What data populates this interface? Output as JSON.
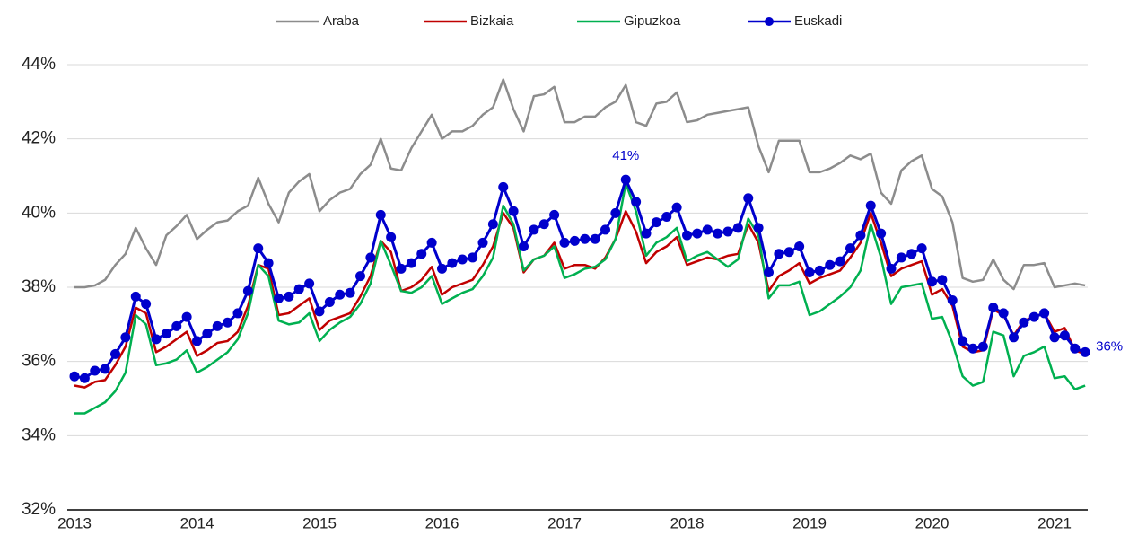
{
  "chart_data": {
    "type": "line",
    "categories": [
      "2013",
      null,
      null,
      null,
      null,
      null,
      null,
      null,
      null,
      null,
      null,
      null,
      "2014",
      null,
      null,
      null,
      null,
      null,
      null,
      null,
      null,
      null,
      null,
      null,
      "2015",
      null,
      null,
      null,
      null,
      null,
      null,
      null,
      null,
      null,
      null,
      null,
      "2016",
      null,
      null,
      null,
      null,
      null,
      null,
      null,
      null,
      null,
      null,
      null,
      "2017",
      null,
      null,
      null,
      null,
      null,
      null,
      null,
      null,
      null,
      null,
      null,
      "2018",
      null,
      null,
      null,
      null,
      null,
      null,
      null,
      null,
      null,
      null,
      null,
      "2019",
      null,
      null,
      null,
      null,
      null,
      null,
      null,
      null,
      null,
      null,
      null,
      "2020",
      null,
      null,
      null,
      null,
      null,
      null,
      null,
      null,
      null,
      null,
      null,
      "2021",
      null,
      null,
      null
    ],
    "ylim": [
      32,
      44
    ],
    "yticks": [
      {
        "value": 32,
        "label": "32%"
      },
      {
        "value": 34,
        "label": "34%"
      },
      {
        "value": 36,
        "label": "36%"
      },
      {
        "value": 38,
        "label": "38%"
      },
      {
        "value": 40,
        "label": "40%"
      },
      {
        "value": 42,
        "label": "42%"
      },
      {
        "value": 44,
        "label": "44%"
      }
    ],
    "grid": true,
    "legend": "top",
    "series": [
      {
        "name": "Araba",
        "color": "#8c8c8c",
        "values": [
          38.0,
          38.0,
          38.05,
          38.2,
          38.6,
          38.9,
          39.6,
          39.05,
          38.6,
          39.4,
          39.65,
          39.95,
          39.3,
          39.55,
          39.75,
          39.8,
          40.05,
          40.2,
          40.95,
          40.25,
          39.75,
          40.55,
          40.85,
          41.05,
          40.05,
          40.35,
          40.55,
          40.65,
          41.05,
          41.3,
          42.0,
          41.2,
          41.15,
          41.75,
          42.2,
          42.65,
          42.0,
          42.2,
          42.2,
          42.35,
          42.65,
          42.85,
          43.6,
          42.8,
          42.2,
          43.15,
          43.2,
          43.4,
          42.45,
          42.45,
          42.6,
          42.6,
          42.85,
          43.0,
          43.45,
          42.45,
          42.35,
          42.95,
          43.0,
          43.25,
          42.45,
          42.5,
          42.65,
          42.7,
          42.75,
          42.8,
          42.85,
          41.8,
          41.1,
          41.95,
          41.95,
          41.95,
          41.1,
          41.1,
          41.2,
          41.35,
          41.55,
          41.45,
          41.6,
          40.55,
          40.25,
          41.15,
          41.4,
          41.55,
          40.65,
          40.45,
          39.75,
          38.25,
          38.15,
          38.2,
          38.75,
          38.2,
          37.95,
          38.6,
          38.6,
          38.65,
          38.0,
          38.05,
          38.1,
          38.05
        ]
      },
      {
        "name": "Bizkaia",
        "color": "#c00000",
        "values": [
          35.35,
          35.3,
          35.45,
          35.5,
          35.9,
          36.4,
          37.45,
          37.3,
          36.25,
          36.4,
          36.6,
          36.8,
          36.15,
          36.3,
          36.5,
          36.55,
          36.8,
          37.5,
          38.6,
          38.5,
          37.25,
          37.3,
          37.5,
          37.7,
          36.85,
          37.1,
          37.2,
          37.3,
          37.75,
          38.3,
          39.25,
          38.95,
          37.9,
          38.0,
          38.2,
          38.55,
          37.8,
          38.0,
          38.1,
          38.2,
          38.6,
          39.1,
          40.0,
          39.6,
          38.4,
          38.75,
          38.85,
          39.2,
          38.5,
          38.6,
          38.6,
          38.5,
          38.8,
          39.3,
          40.05,
          39.5,
          38.65,
          38.95,
          39.1,
          39.35,
          38.6,
          38.7,
          38.8,
          38.75,
          38.85,
          38.9,
          39.7,
          39.2,
          37.9,
          38.3,
          38.45,
          38.65,
          38.1,
          38.25,
          38.35,
          38.45,
          38.8,
          39.2,
          40.0,
          39.2,
          38.3,
          38.5,
          38.6,
          38.7,
          37.8,
          37.95,
          37.5,
          36.4,
          36.25,
          36.3,
          37.4,
          37.25,
          36.7,
          37.1,
          37.2,
          37.3,
          36.8,
          36.9,
          36.3,
          36.2
        ]
      },
      {
        "name": "Gipuzkoa",
        "color": "#00b050",
        "values": [
          34.6,
          34.6,
          34.75,
          34.9,
          35.2,
          35.7,
          37.25,
          37.0,
          35.9,
          35.95,
          36.05,
          36.3,
          35.7,
          35.85,
          36.05,
          36.25,
          36.6,
          37.3,
          38.6,
          38.3,
          37.1,
          37.0,
          37.05,
          37.3,
          36.55,
          36.85,
          37.05,
          37.2,
          37.55,
          38.1,
          39.25,
          38.6,
          37.9,
          37.85,
          38.0,
          38.3,
          37.55,
          37.7,
          37.85,
          37.95,
          38.3,
          38.8,
          40.2,
          39.7,
          38.45,
          38.75,
          38.85,
          39.1,
          38.25,
          38.35,
          38.5,
          38.55,
          38.75,
          39.3,
          40.8,
          40.05,
          38.85,
          39.2,
          39.35,
          39.6,
          38.7,
          38.85,
          38.95,
          38.75,
          38.55,
          38.75,
          39.85,
          39.4,
          37.7,
          38.05,
          38.05,
          38.15,
          37.25,
          37.35,
          37.55,
          37.75,
          38.0,
          38.45,
          39.7,
          38.8,
          37.55,
          38.0,
          38.05,
          38.1,
          37.15,
          37.2,
          36.5,
          35.6,
          35.35,
          35.45,
          36.8,
          36.7,
          35.6,
          36.15,
          36.25,
          36.4,
          35.55,
          35.6,
          35.25,
          35.35
        ]
      },
      {
        "name": "Euskadi",
        "color": "#0000cc",
        "marker": true,
        "values": [
          35.6,
          35.55,
          35.75,
          35.8,
          36.2,
          36.65,
          37.75,
          37.55,
          36.6,
          36.75,
          36.95,
          37.2,
          36.55,
          36.75,
          36.95,
          37.05,
          37.3,
          37.9,
          39.05,
          38.65,
          37.7,
          37.75,
          37.95,
          38.1,
          37.35,
          37.6,
          37.8,
          37.85,
          38.3,
          38.8,
          39.95,
          39.35,
          38.5,
          38.65,
          38.9,
          39.2,
          38.5,
          38.65,
          38.75,
          38.8,
          39.2,
          39.7,
          40.7,
          40.05,
          39.1,
          39.55,
          39.7,
          39.95,
          39.2,
          39.25,
          39.3,
          39.3,
          39.55,
          40.0,
          40.9,
          40.3,
          39.45,
          39.75,
          39.9,
          40.15,
          39.4,
          39.45,
          39.55,
          39.45,
          39.5,
          39.6,
          40.4,
          39.6,
          38.4,
          38.9,
          38.95,
          39.1,
          38.4,
          38.45,
          38.6,
          38.7,
          39.05,
          39.4,
          40.2,
          39.45,
          38.5,
          38.8,
          38.9,
          39.05,
          38.15,
          38.2,
          37.65,
          36.55,
          36.35,
          36.4,
          37.45,
          37.3,
          36.65,
          37.05,
          37.2,
          37.3,
          36.65,
          36.7,
          36.35,
          36.25
        ],
        "value_labels": [
          null,
          null,
          null,
          null,
          null,
          null,
          null,
          null,
          null,
          null,
          null,
          null,
          null,
          null,
          null,
          null,
          null,
          null,
          null,
          null,
          null,
          null,
          null,
          null,
          null,
          null,
          null,
          null,
          null,
          null,
          null,
          null,
          null,
          null,
          null,
          null,
          null,
          null,
          null,
          null,
          null,
          null,
          null,
          null,
          null,
          null,
          null,
          null,
          null,
          null,
          null,
          null,
          null,
          null,
          "41%",
          null,
          null,
          null,
          null,
          null,
          null,
          null,
          null,
          null,
          null,
          null,
          null,
          null,
          null,
          null,
          null,
          null,
          null,
          null,
          null,
          null,
          null,
          null,
          null,
          null,
          null,
          null,
          null,
          null,
          null,
          null,
          null,
          null,
          null,
          null,
          null,
          null,
          null,
          null,
          null,
          null,
          null,
          null,
          null,
          "36%"
        ]
      }
    ]
  }
}
